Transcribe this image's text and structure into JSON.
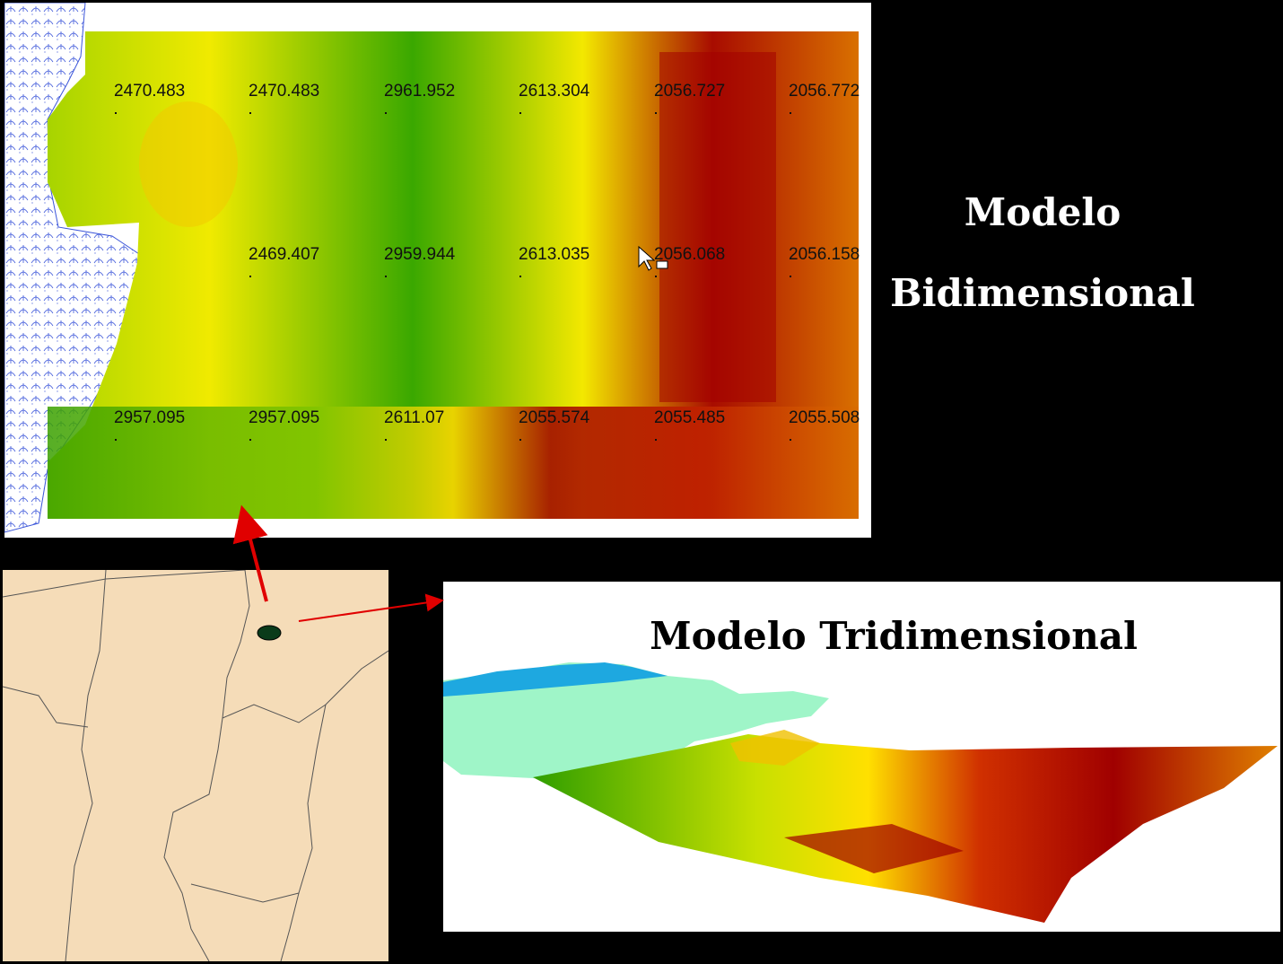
{
  "titles": {
    "bidimensional_line1": "Modelo",
    "bidimensional_line2": "Bidimensional",
    "tridimensional": "Modelo Tridimensional"
  },
  "grid_values": [
    [
      "2470.483",
      "2470.483",
      "2961.952",
      "2613.304",
      "2056.727",
      "2056.772"
    ],
    [
      "",
      "2469.407",
      "2959.944",
      "2613.035",
      "2056.068",
      "2056.158"
    ],
    [
      "2957.095",
      "2957.095",
      "2611.07",
      "2055.574",
      "2055.485",
      "2055.508"
    ]
  ],
  "colors": {
    "background": "#000000",
    "map_fill": "#f5dcb8",
    "arrow": "#e00000",
    "surface_low": "#a50000",
    "surface_mid": "#ffff00",
    "surface_high": "#2f9e00",
    "water_light": "#9ff5c8",
    "water_dark": "#1ea8e0"
  }
}
